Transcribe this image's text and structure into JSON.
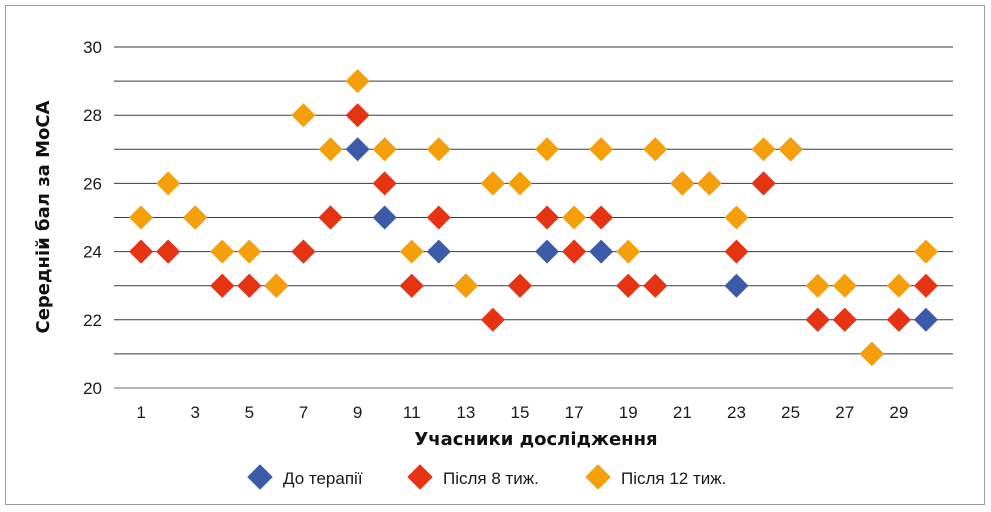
{
  "chart_data": {
    "type": "scatter",
    "xlabel": "Учасники дослідження",
    "ylabel": "Середній бал за MoCA",
    "ylim": [
      20,
      30
    ],
    "xlim": [
      0,
      31
    ],
    "yticks": [
      "20",
      "22",
      "24",
      "26",
      "28",
      "30"
    ],
    "xticks": [
      "1",
      "3",
      "5",
      "7",
      "9",
      "11",
      "13",
      "15",
      "17",
      "19",
      "21",
      "23",
      "25",
      "27",
      "29"
    ],
    "grid": "horizontal, every 1 unit",
    "legend_position": "bottom",
    "marker": "diamond",
    "series": [
      {
        "name": "До терапії",
        "color": "#3b5ba9",
        "points": [
          [
            1,
            24
          ],
          [
            2,
            24
          ],
          [
            3,
            25
          ],
          [
            4,
            23
          ],
          [
            5,
            23
          ],
          [
            6,
            23
          ],
          [
            7,
            24
          ],
          [
            8,
            25
          ],
          [
            9,
            27
          ],
          [
            10,
            25
          ],
          [
            11,
            23
          ],
          [
            12,
            24
          ],
          [
            13,
            23
          ],
          [
            14,
            26
          ],
          [
            15,
            23
          ],
          [
            16,
            24
          ],
          [
            17,
            24
          ],
          [
            18,
            24
          ],
          [
            19,
            23
          ],
          [
            20,
            23
          ],
          [
            21,
            26
          ],
          [
            22,
            26
          ],
          [
            23,
            23
          ],
          [
            24,
            26
          ],
          [
            25,
            27
          ],
          [
            26,
            22
          ],
          [
            27,
            22
          ],
          [
            28,
            21
          ],
          [
            29,
            22
          ],
          [
            30,
            22
          ]
        ]
      },
      {
        "name": "Після 8 тиж.",
        "color": "#e63312",
        "points": [
          [
            1,
            24
          ],
          [
            2,
            24
          ],
          [
            3,
            25
          ],
          [
            4,
            23
          ],
          [
            5,
            23
          ],
          [
            6,
            23
          ],
          [
            7,
            24
          ],
          [
            8,
            25
          ],
          [
            9,
            28
          ],
          [
            10,
            26
          ],
          [
            11,
            23
          ],
          [
            12,
            25
          ],
          [
            13,
            23
          ],
          [
            14,
            22
          ],
          [
            15,
            23
          ],
          [
            16,
            25
          ],
          [
            17,
            24
          ],
          [
            18,
            25
          ],
          [
            19,
            23
          ],
          [
            20,
            23
          ],
          [
            21,
            26
          ],
          [
            22,
            26
          ],
          [
            23,
            24
          ],
          [
            24,
            26
          ],
          [
            25,
            27
          ],
          [
            26,
            22
          ],
          [
            27,
            22
          ],
          [
            28,
            21
          ],
          [
            29,
            22
          ],
          [
            30,
            23
          ]
        ]
      },
      {
        "name": "Після 12 тиж.",
        "color": "#f5a00a",
        "points": [
          [
            1,
            25
          ],
          [
            2,
            26
          ],
          [
            3,
            25
          ],
          [
            4,
            24
          ],
          [
            5,
            24
          ],
          [
            6,
            23
          ],
          [
            7,
            28
          ],
          [
            8,
            27
          ],
          [
            9,
            29
          ],
          [
            10,
            27
          ],
          [
            11,
            24
          ],
          [
            12,
            27
          ],
          [
            13,
            23
          ],
          [
            14,
            26
          ],
          [
            15,
            26
          ],
          [
            16,
            27
          ],
          [
            17,
            25
          ],
          [
            18,
            27
          ],
          [
            19,
            24
          ],
          [
            20,
            27
          ],
          [
            21,
            26
          ],
          [
            22,
            26
          ],
          [
            23,
            25
          ],
          [
            24,
            27
          ],
          [
            25,
            27
          ],
          [
            26,
            23
          ],
          [
            27,
            23
          ],
          [
            28,
            21
          ],
          [
            29,
            23
          ],
          [
            30,
            24
          ]
        ]
      }
    ]
  }
}
